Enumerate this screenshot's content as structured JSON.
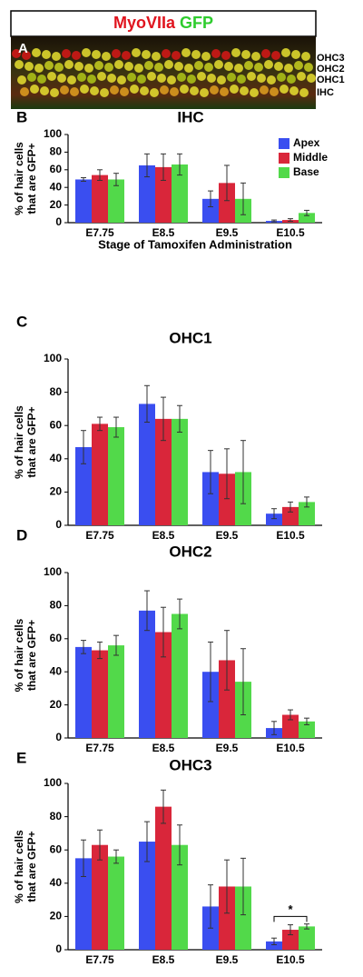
{
  "header": {
    "title_parts": [
      "MyoVIIa",
      "GFP"
    ]
  },
  "panel_a": {
    "letter": "A",
    "labels": [
      "OHC3",
      "OHC2",
      "OHC1",
      "IHC"
    ]
  },
  "chart_data": [
    {
      "type": "bar",
      "panel": "B",
      "title": "IHC",
      "ylabel": [
        "% of hair cells",
        "that are GFP+"
      ],
      "xlabel": "Stage of Tamoxifen Administration",
      "categories": [
        "E7.75",
        "E8.5",
        "E9.5",
        "E10.5"
      ],
      "ylim": [
        0,
        100
      ],
      "yticks": [
        0,
        20,
        40,
        60,
        80,
        100
      ],
      "legend": "top-right",
      "series": [
        {
          "name": "Apex",
          "color": "#3a4ef0",
          "values": [
            49,
            65,
            27,
            2
          ],
          "errors": [
            2,
            13,
            9,
            1
          ]
        },
        {
          "name": "Middle",
          "color": "#d9263a",
          "values": [
            54,
            63,
            45,
            3
          ],
          "errors": [
            6,
            15,
            20,
            1.5
          ]
        },
        {
          "name": "Base",
          "color": "#52d94a",
          "values": [
            49,
            66,
            27,
            11
          ],
          "errors": [
            7,
            12,
            18,
            3
          ]
        }
      ]
    },
    {
      "type": "bar",
      "panel": "C",
      "title": "OHC1",
      "ylabel": [
        "% of hair cells",
        "that are GFP+"
      ],
      "categories": [
        "E7.75",
        "E8.5",
        "E9.5",
        "E10.5"
      ],
      "ylim": [
        0,
        100
      ],
      "yticks": [
        0,
        20,
        40,
        60,
        80,
        100
      ],
      "series": [
        {
          "name": "Apex",
          "color": "#3a4ef0",
          "values": [
            47,
            73,
            32,
            7
          ],
          "errors": [
            10,
            11,
            13,
            3
          ]
        },
        {
          "name": "Middle",
          "color": "#d9263a",
          "values": [
            61,
            64,
            31,
            11
          ],
          "errors": [
            4,
            13,
            15,
            3
          ]
        },
        {
          "name": "Base",
          "color": "#52d94a",
          "values": [
            59,
            64,
            32,
            14
          ],
          "errors": [
            6,
            8,
            19,
            3
          ]
        }
      ]
    },
    {
      "type": "bar",
      "panel": "D",
      "title": "OHC2",
      "ylabel": [
        "% of hair cells",
        "that are GFP+"
      ],
      "categories": [
        "E7.75",
        "E8.5",
        "E9.5",
        "E10.5"
      ],
      "ylim": [
        0,
        100
      ],
      "yticks": [
        0,
        20,
        40,
        60,
        80,
        100
      ],
      "series": [
        {
          "name": "Apex",
          "color": "#3a4ef0",
          "values": [
            55,
            77,
            40,
            6
          ],
          "errors": [
            4,
            12,
            18,
            4
          ]
        },
        {
          "name": "Middle",
          "color": "#d9263a",
          "values": [
            53,
            64,
            47,
            14
          ],
          "errors": [
            5,
            15,
            18,
            3
          ]
        },
        {
          "name": "Base",
          "color": "#52d94a",
          "values": [
            56,
            75,
            34,
            10
          ],
          "errors": [
            6,
            9,
            20,
            2
          ]
        }
      ]
    },
    {
      "type": "bar",
      "panel": "E",
      "title": "OHC3",
      "ylabel": [
        "% of hair cells",
        "that are GFP+"
      ],
      "categories": [
        "E7.75",
        "E8.5",
        "E9.5",
        "E10.5"
      ],
      "ylim": [
        0,
        100
      ],
      "yticks": [
        0,
        20,
        40,
        60,
        80,
        100
      ],
      "annotation": "*",
      "series": [
        {
          "name": "Apex",
          "color": "#3a4ef0",
          "values": [
            55,
            65,
            26,
            5
          ],
          "errors": [
            11,
            12,
            13,
            2
          ]
        },
        {
          "name": "Middle",
          "color": "#d9263a",
          "values": [
            63,
            86,
            38,
            12
          ],
          "errors": [
            9,
            10,
            16,
            3
          ]
        },
        {
          "name": "Base",
          "color": "#52d94a",
          "values": [
            56,
            63,
            38,
            14
          ],
          "errors": [
            4,
            12,
            17,
            1.5
          ]
        }
      ]
    }
  ]
}
